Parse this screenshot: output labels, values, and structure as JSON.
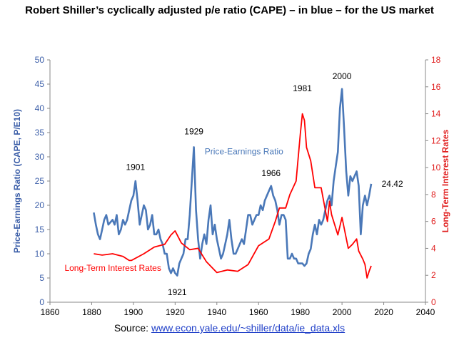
{
  "title": "Robert Shiller’s cyclically adjusted p/e ratio (CAPE) – in blue – for the US market",
  "source": {
    "prefix": "Source: ",
    "url": "www.econ.yale.edu/~shiller/data/ie_data.xls"
  },
  "colors": {
    "cape": "#4a78b8",
    "rate": "#ff0000",
    "left_axis": "#3b5ea8",
    "right_axis": "#e02020"
  },
  "chart_data": {
    "type": "line",
    "xlim": [
      1860,
      2040
    ],
    "ylim_left": [
      0,
      50
    ],
    "ylim_right": [
      0,
      18
    ],
    "x_ticks": [
      1860,
      1880,
      1900,
      1920,
      1940,
      1960,
      1980,
      2000,
      2020,
      2040
    ],
    "y_left_ticks": [
      0,
      5,
      10,
      15,
      20,
      25,
      30,
      35,
      40,
      45,
      50
    ],
    "y_right_ticks": [
      0,
      2,
      4,
      6,
      8,
      10,
      12,
      14,
      16,
      18
    ],
    "ylabel_left": "Price-Earnings Ratio (CAPE, P/E10)",
    "ylabel_right": "Long-Term Interest Rates",
    "grid": false,
    "series": [
      {
        "name": "Price-Earnings Ratio",
        "axis": "left",
        "x": [
          1881,
          1882,
          1883,
          1884,
          1885,
          1886,
          1887,
          1888,
          1889,
          1890,
          1891,
          1892,
          1893,
          1894,
          1895,
          1896,
          1897,
          1898,
          1899,
          1900,
          1901,
          1902,
          1903,
          1904,
          1905,
          1906,
          1907,
          1908,
          1909,
          1910,
          1911,
          1912,
          1913,
          1914,
          1915,
          1916,
          1917,
          1918,
          1919,
          1920,
          1921,
          1922,
          1923,
          1924,
          1925,
          1926,
          1927,
          1928,
          1929,
          1930,
          1931,
          1932,
          1933,
          1934,
          1935,
          1936,
          1937,
          1938,
          1939,
          1940,
          1941,
          1942,
          1943,
          1944,
          1945,
          1946,
          1947,
          1948,
          1949,
          1950,
          1951,
          1952,
          1953,
          1954,
          1955,
          1956,
          1957,
          1958,
          1959,
          1960,
          1961,
          1962,
          1963,
          1964,
          1965,
          1966,
          1967,
          1968,
          1969,
          1970,
          1971,
          1972,
          1973,
          1974,
          1975,
          1976,
          1977,
          1978,
          1979,
          1980,
          1981,
          1982,
          1983,
          1984,
          1985,
          1986,
          1987,
          1988,
          1989,
          1990,
          1991,
          1992,
          1993,
          1994,
          1995,
          1996,
          1997,
          1998,
          1999,
          2000,
          2001,
          2002,
          2003,
          2004,
          2005,
          2006,
          2007,
          2008,
          2009,
          2010,
          2011,
          2012,
          2013,
          2014
        ],
        "values": [
          18.5,
          16,
          14,
          13,
          15,
          17,
          18,
          16,
          16.5,
          17,
          16,
          18,
          14,
          15,
          17,
          16,
          17,
          19,
          21,
          22,
          25,
          21,
          16,
          18,
          20,
          19,
          15,
          16,
          18,
          14,
          14,
          15,
          13,
          12,
          10,
          10,
          7,
          6,
          7,
          6,
          5.5,
          8,
          9,
          10,
          13,
          13,
          18,
          25,
          32,
          19,
          13,
          9,
          12,
          14,
          12,
          17,
          20,
          14,
          16,
          13,
          11,
          9,
          10,
          12,
          14,
          17,
          13,
          10,
          10,
          11,
          12,
          13,
          12,
          15,
          18,
          18,
          16,
          17,
          18,
          18,
          20,
          19,
          21,
          22,
          23,
          24,
          22,
          21,
          19,
          16,
          18,
          18,
          17,
          9,
          9,
          10,
          9,
          9,
          8,
          8,
          8,
          7.5,
          8,
          10,
          11,
          14,
          16,
          14,
          17,
          16,
          17,
          19,
          21,
          22,
          20,
          25,
          28,
          31,
          40,
          44,
          36,
          27,
          22,
          26,
          25,
          26,
          27,
          24,
          14,
          20,
          22,
          20,
          22,
          24.42
        ]
      },
      {
        "name": "Long-Term Interest Rates",
        "axis": "right",
        "x": [
          1881,
          1885,
          1890,
          1895,
          1898,
          1899,
          1905,
          1910,
          1915,
          1918,
          1920,
          1923,
          1927,
          1931,
          1935,
          1940,
          1945,
          1950,
          1955,
          1960,
          1965,
          1968,
          1970,
          1973,
          1975,
          1978,
          1980,
          1981,
          1982,
          1983,
          1985,
          1987,
          1990,
          1993,
          1994,
          1995,
          1998,
          2000,
          2003,
          2005,
          2007,
          2008,
          2010,
          2011,
          2012,
          2013,
          2014
        ],
        "values": [
          3.6,
          3.5,
          3.6,
          3.4,
          3.1,
          3.1,
          3.6,
          4.1,
          4.3,
          5.0,
          5.3,
          4.4,
          3.9,
          4.0,
          3.0,
          2.2,
          2.4,
          2.3,
          2.8,
          4.2,
          4.7,
          6.0,
          7.0,
          7.0,
          8.0,
          9.0,
          12.5,
          14.0,
          13.5,
          11.5,
          10.5,
          8.5,
          8.5,
          6.0,
          7.5,
          6.5,
          5.0,
          6.3,
          4.0,
          4.3,
          4.7,
          3.8,
          3.2,
          2.8,
          1.8,
          2.3,
          2.7
        ]
      }
    ],
    "annotations": [
      {
        "text": "1901",
        "x": 1901,
        "y": 27.3
      },
      {
        "text": "1929",
        "x": 1929,
        "y": 34.6
      },
      {
        "text": "1921",
        "x": 1921,
        "y": 1.5
      },
      {
        "text": "1966",
        "x": 1966,
        "y": 26.0
      },
      {
        "text": "1981",
        "x": 1981,
        "y": 43.5
      },
      {
        "text": "2000",
        "x": 2000,
        "y": 46.0
      },
      {
        "text": "24.42",
        "x": 2019,
        "y": 23.8
      },
      {
        "text": "Price-Earnings Ratio",
        "x": 1953,
        "y": 30.5
      },
      {
        "text": "Long-Term Interest Rates",
        "x": 1867,
        "y": 6.5
      }
    ]
  }
}
